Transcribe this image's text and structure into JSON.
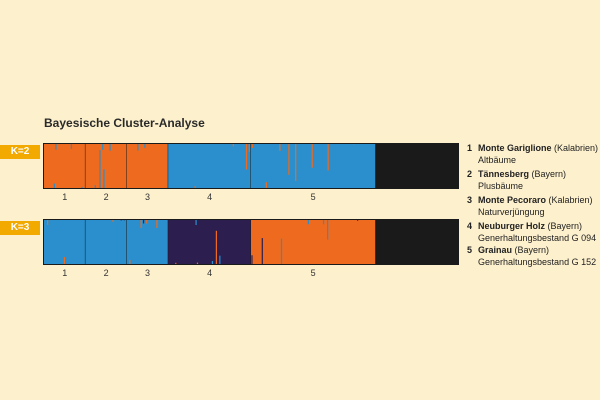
{
  "title": "Bayesische Cluster-Analyse",
  "colors": {
    "orange": "#ee6a1e",
    "blue": "#2a8fcc",
    "purple": "#2d1e50",
    "divider": "#1a1a1a"
  },
  "chart_data": [
    {
      "type": "bar",
      "stacked": true,
      "label": "K=2",
      "groups": [
        "1",
        "2",
        "3",
        "4",
        "5"
      ],
      "group_fractions": [
        0.1,
        0.1,
        0.1,
        0.2,
        0.3
      ],
      "clusters": [
        {
          "color": "#ee6a1e",
          "group_dominant": [
            1,
            1,
            1,
            0,
            0
          ]
        },
        {
          "color": "#2a8fcc",
          "group_dominant": [
            0,
            0,
            0,
            1,
            1
          ]
        }
      ]
    },
    {
      "type": "bar",
      "stacked": true,
      "label": "K=3",
      "groups": [
        "1",
        "2",
        "3",
        "4",
        "5"
      ],
      "group_fractions": [
        0.1,
        0.1,
        0.1,
        0.2,
        0.3
      ],
      "clusters": [
        {
          "color": "#2a8fcc",
          "group_dominant": [
            1,
            1,
            1,
            0,
            0
          ]
        },
        {
          "color": "#2d1e50",
          "group_dominant": [
            0,
            0,
            0,
            1,
            0
          ]
        },
        {
          "color": "#ee6a1e",
          "group_dominant": [
            0,
            0,
            0,
            0,
            1
          ]
        }
      ]
    }
  ],
  "legend": [
    {
      "num": "1",
      "name": "Monte Gariglione",
      "region": " (Kalabrien)",
      "desc": "Altbäume"
    },
    {
      "num": "2",
      "name": "Tännesberg",
      "region": " (Bayern)",
      "desc": "Plusbäume"
    },
    {
      "num": "3",
      "name": "Monte Pecoraro",
      "region": " (Kalabrien)",
      "desc": "Naturverjüngung"
    },
    {
      "num": "4",
      "name": "Neuburger Holz",
      "region": " (Bayern)",
      "desc": "Generhaltungsbestand G 094"
    },
    {
      "num": "5",
      "name": "Grainau",
      "region": " (Bayern)",
      "desc": "Generhaltungsbestand G 152"
    }
  ]
}
